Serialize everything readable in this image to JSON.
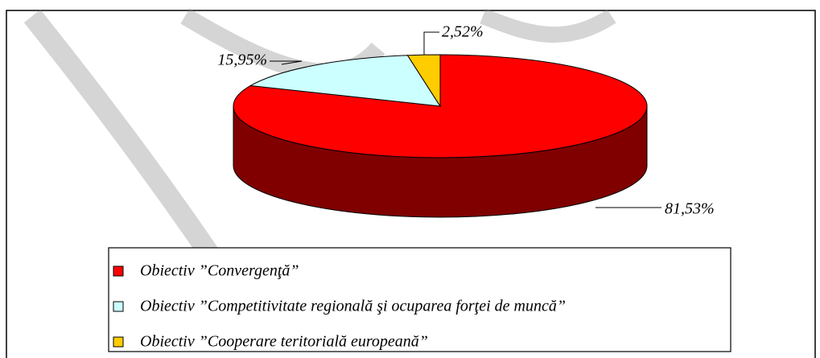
{
  "chart_data": {
    "type": "pie3d",
    "categories": [
      "Obiectiv ”Convergenţă”",
      "Obiectiv ”Competitivitate regională şi ocuparea forţei de muncă”",
      "Obiectiv ”Cooperare teritorială europeană”"
    ],
    "values": [
      81.53,
      15.95,
      2.52
    ],
    "value_labels": [
      "81,53%",
      "15,95%",
      "2,52%"
    ],
    "colors": [
      "#ff0000",
      "#ccffff",
      "#ffcc00"
    ],
    "legend": "bottom"
  }
}
